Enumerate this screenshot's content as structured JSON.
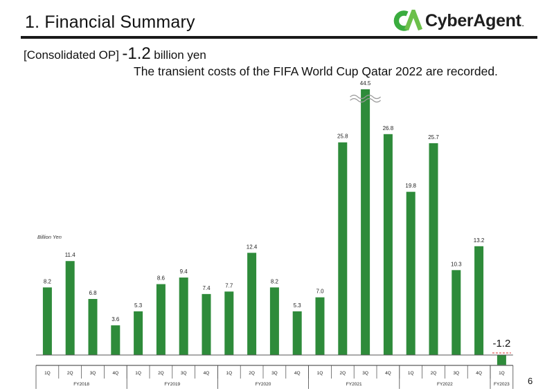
{
  "header": {
    "title": "1.  Financial Summary",
    "logo_text": "CyberAgent",
    "logo_mark": "CA",
    "logo_suffix": ".",
    "brand_color": "#3aac3e"
  },
  "headline": {
    "lead": "[Consolidated OP]",
    "value": "-1.2",
    "unit": "billion yen",
    "note": "The transient costs of the FIFA World Cup Qatar 2022 are recorded."
  },
  "page_number": "6",
  "chart_data": {
    "type": "bar",
    "ylabel": "Billion Yen",
    "bar_color": "#2e8b3a",
    "categories": [
      "1Q",
      "2Q",
      "3Q",
      "4Q",
      "1Q",
      "2Q",
      "3Q",
      "4Q",
      "1Q",
      "2Q",
      "3Q",
      "4Q",
      "1Q",
      "2Q",
      "3Q",
      "4Q",
      "1Q",
      "2Q",
      "3Q",
      "4Q",
      "1Q"
    ],
    "values": [
      8.2,
      11.4,
      6.8,
      3.6,
      5.3,
      8.6,
      9.4,
      7.4,
      7.7,
      12.4,
      8.2,
      5.3,
      7.0,
      25.8,
      44.5,
      26.8,
      19.8,
      25.7,
      10.3,
      13.2,
      -1.2
    ],
    "labels": [
      "8.2",
      "11.4",
      "6.8",
      "3.6",
      "5.3",
      "8.6",
      "9.4",
      "7.4",
      "7.7",
      "12.4",
      "8.2",
      "5.3",
      "7.0",
      "25.8",
      "44.5",
      "26.8",
      "19.8",
      "25.7",
      "10.3",
      "13.2",
      "-1.2"
    ],
    "broken_bar_index": 14,
    "groups": [
      {
        "label": "FY2018",
        "count": 4
      },
      {
        "label": "FY2019",
        "count": 4
      },
      {
        "label": "FY2020",
        "count": 4
      },
      {
        "label": "FY2021",
        "count": 4
      },
      {
        "label": "FY2022",
        "count": 4
      },
      {
        "label": "FY2023",
        "count": 1
      }
    ]
  }
}
